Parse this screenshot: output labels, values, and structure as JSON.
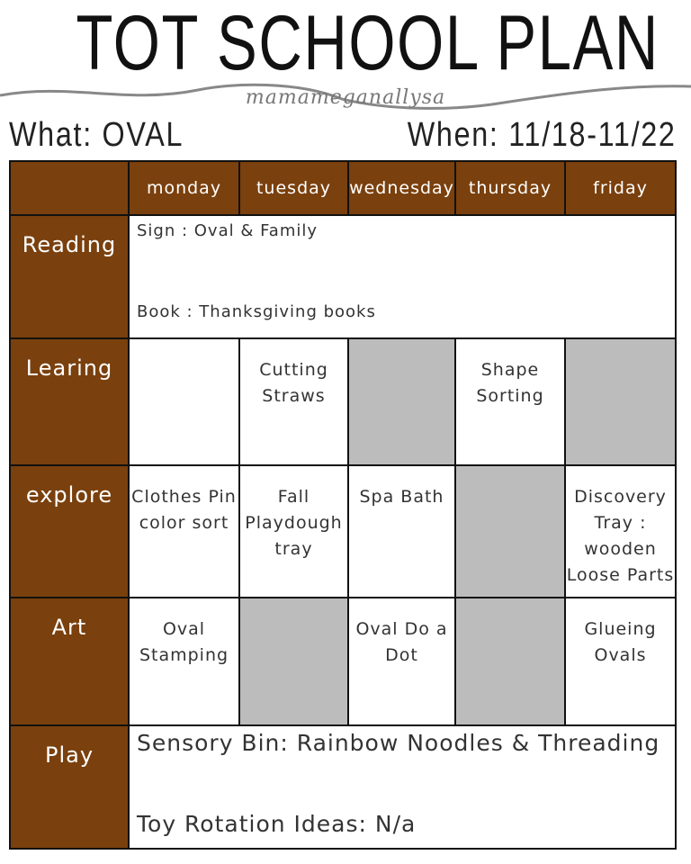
{
  "title": "TOT SCHOOL PLAN",
  "signature": "mamameganallysa",
  "what": "What: OVAL",
  "when": "When: 11/18-11/22",
  "days": [
    "monday",
    "tuesday",
    "wednesday",
    "thursday",
    "friday"
  ],
  "rows": {
    "reading": {
      "label": "Reading",
      "line1": "Sign : Oval & Family",
      "line2": "Book : Thanksgiving books"
    },
    "learning": {
      "label": "Learing",
      "cells": [
        "",
        "Cutting Straws",
        "",
        "Shape Sorting",
        ""
      ]
    },
    "explore": {
      "label": "explore",
      "cells": [
        "Clothes Pin color sort",
        "Fall Playdough tray",
        "Spa Bath",
        "",
        "Discovery Tray : wooden Loose Parts"
      ]
    },
    "art": {
      "label": "Art",
      "cells": [
        "Oval Stamping",
        "",
        "Oval Do a Dot",
        "",
        "Glueing Ovals"
      ]
    },
    "play": {
      "label": "Play",
      "line1": "Sensory Bin: Rainbow Noodles & Threading",
      "line2": "Toy Rotation Ideas: N/a"
    }
  },
  "colors": {
    "header": "#7a400d",
    "empty": "#bcbcbc"
  }
}
